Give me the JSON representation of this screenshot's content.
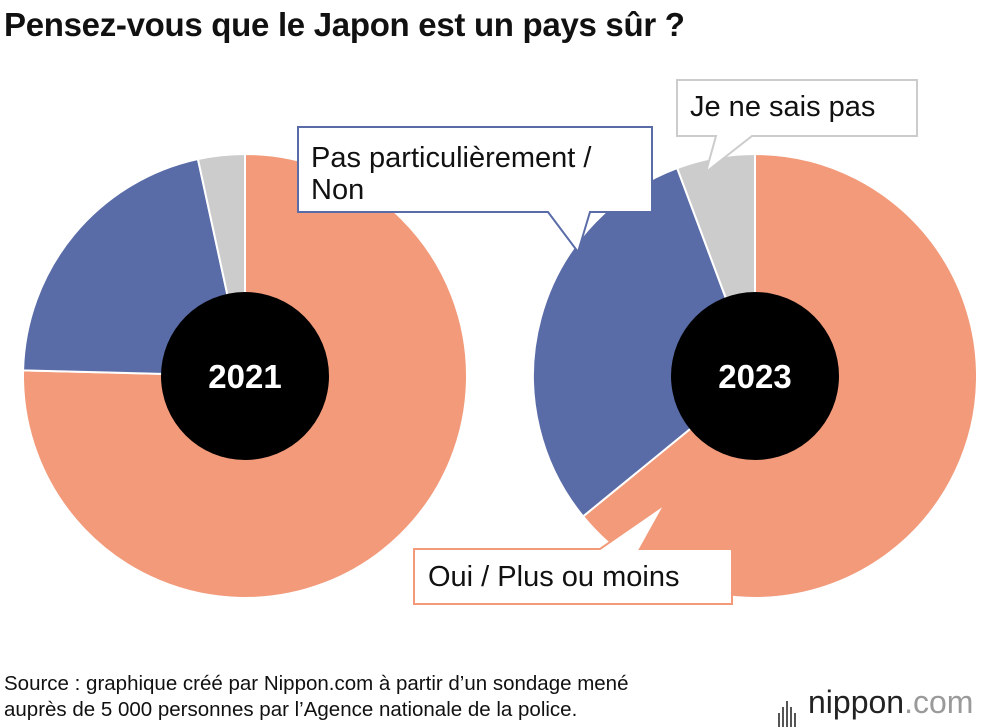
{
  "title": "Pensez-vous que le Japon est un pays sûr ?",
  "source": [
    "Source : graphique créé par Nippon.com à partir d’un sondage mené",
    "auprès de 5 000 personnes par l’Agence nationale de la police."
  ],
  "brand": {
    "name": "nippon",
    "suffix": ".com"
  },
  "colors": {
    "oui": "#F29A7A",
    "non": "#5A6CA8",
    "nsp": "#CCCCCC",
    "hole": "#000000",
    "callout_border": "#5A6CA8"
  },
  "chart_data": {
    "type": "pie",
    "title": "Pensez-vous que le Japon est un pays sûr ?",
    "categories": [
      "Oui / Plus ou moins",
      "Pas particulièrement / Non",
      "Je ne sais pas"
    ],
    "charts": [
      {
        "label": "2021",
        "values": [
          75.4,
          21.2,
          3.4
        ]
      },
      {
        "label": "2023",
        "values": [
          64.1,
          30.2,
          5.7
        ]
      }
    ],
    "callouts": {
      "non": [
        "Pas particulièrement /",
        "Non"
      ],
      "nsp": [
        "Je ne sais pas"
      ],
      "oui": [
        "Oui / Plus ou moins"
      ]
    }
  }
}
